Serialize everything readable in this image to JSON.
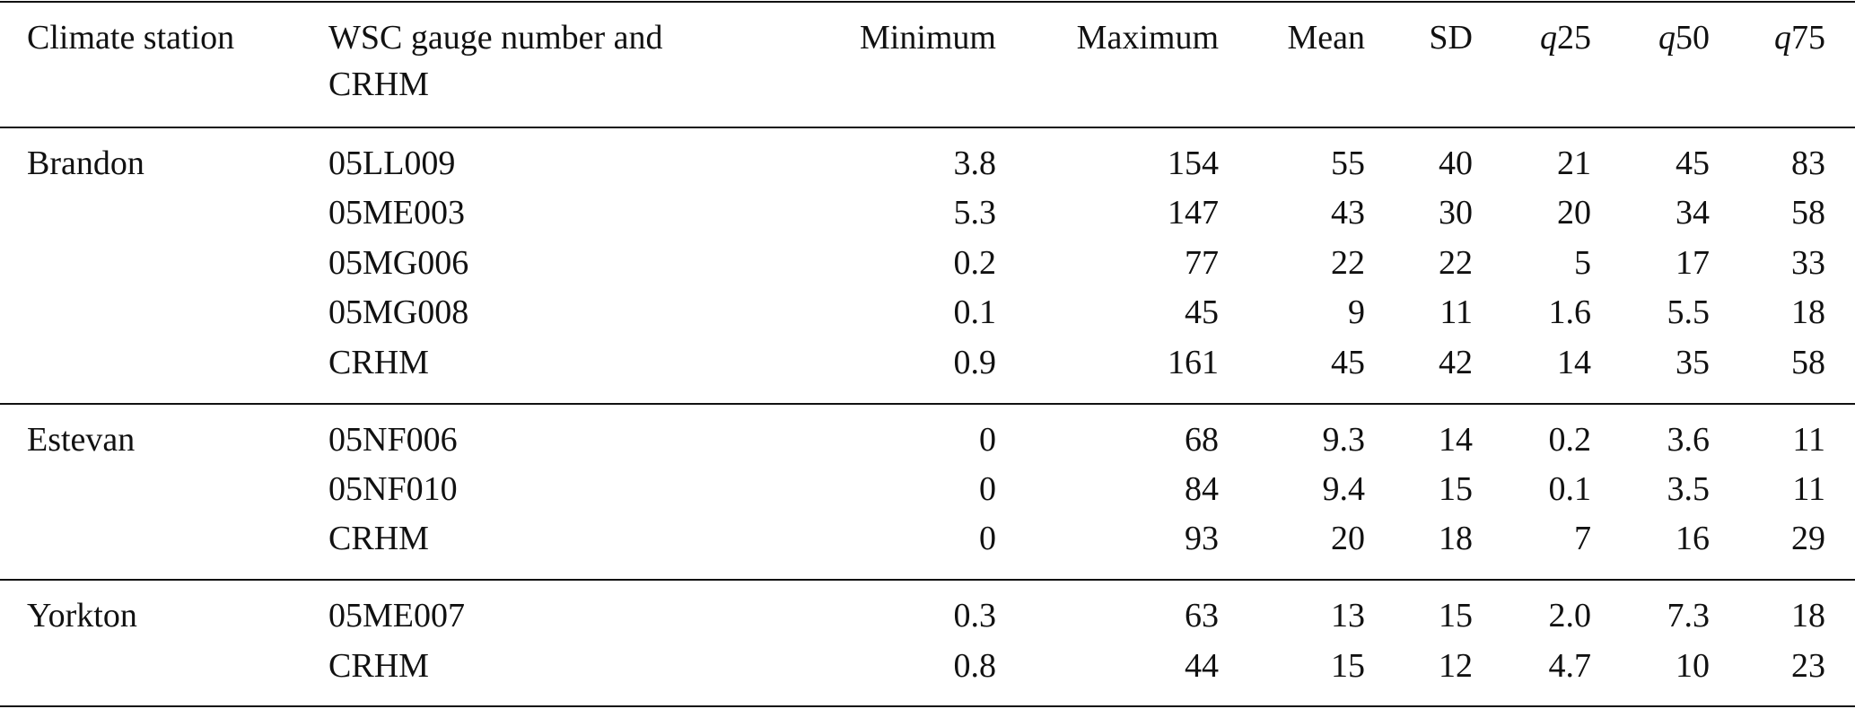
{
  "table": {
    "headers": [
      "Climate station",
      "WSC gauge number and CRHM",
      "Minimum",
      "Maximum",
      "Mean",
      "SD",
      "q25",
      "q50",
      "q75"
    ],
    "groups": [
      {
        "station": "Brandon",
        "rows": [
          [
            "05LL009",
            "3.8",
            "154",
            "55",
            "40",
            "21",
            "45",
            "83"
          ],
          [
            "05ME003",
            "5.3",
            "147",
            "43",
            "30",
            "20",
            "34",
            "58"
          ],
          [
            "05MG006",
            "0.2",
            "77",
            "22",
            "22",
            "5",
            "17",
            "33"
          ],
          [
            "05MG008",
            "0.1",
            "45",
            "9",
            "11",
            "1.6",
            "5.5",
            "18"
          ],
          [
            "CRHM",
            "0.9",
            "161",
            "45",
            "42",
            "14",
            "35",
            "58"
          ]
        ]
      },
      {
        "station": "Estevan",
        "rows": [
          [
            "05NF006",
            "0",
            "68",
            "9.3",
            "14",
            "0.2",
            "3.6",
            "11"
          ],
          [
            "05NF010",
            "0",
            "84",
            "9.4",
            "15",
            "0.1",
            "3.5",
            "11"
          ],
          [
            "CRHM",
            "0",
            "93",
            "20",
            "18",
            "7",
            "16",
            "29"
          ]
        ]
      },
      {
        "station": "Yorkton",
        "rows": [
          [
            "05ME007",
            "0.3",
            "63",
            "13",
            "15",
            "2.0",
            "7.3",
            "18"
          ],
          [
            "CRHM",
            "0.8",
            "44",
            "15",
            "12",
            "4.7",
            "10",
            "23"
          ]
        ]
      }
    ]
  }
}
